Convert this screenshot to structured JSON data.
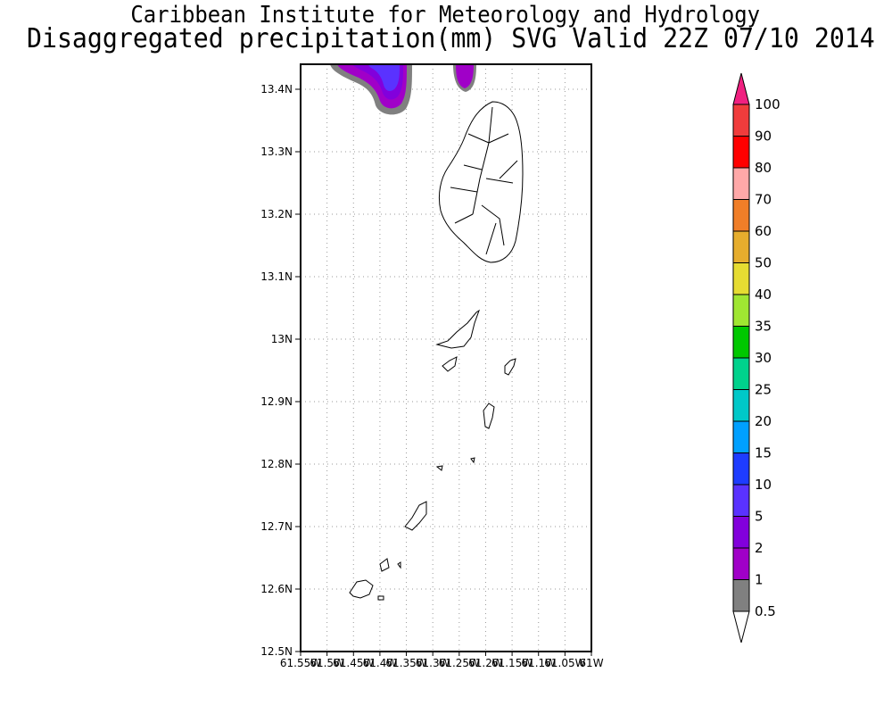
{
  "header": {
    "title_line1": "Caribbean Institute for Meteorology and Hydrology",
    "title_line2": "Disaggregated precipitation(mm) SVG Valid 22Z 07/10 2014"
  },
  "map": {
    "region": "St. Vincent and the Grenadines",
    "lat_labels": [
      "13.4N",
      "13.3N",
      "13.2N",
      "13.1N",
      "13N",
      "12.9N",
      "12.8N",
      "12.7N",
      "12.6N",
      "12.5N"
    ],
    "lon_labels": [
      "61.55W",
      "61.5W",
      "61.45W",
      "61.4W",
      "61.35W",
      "61.3W",
      "61.25W",
      "61.2W",
      "61.15W",
      "61.1W",
      "61.05W",
      "61W"
    ]
  },
  "colorbar": {
    "labels": [
      "100",
      "90",
      "80",
      "70",
      "60",
      "50",
      "40",
      "35",
      "30",
      "25",
      "20",
      "15",
      "10",
      "5",
      "2",
      "1",
      "0.5"
    ],
    "colors": [
      "#f02080",
      "#f03c3c",
      "#ff0000",
      "#ffa8a8",
      "#f07e28",
      "#e6ad2d",
      "#e6dc32",
      "#a0e632",
      "#00c800",
      "#00d28c",
      "#00c8c8",
      "#00a0ff",
      "#1e3cff",
      "#5a32ff",
      "#8200dc",
      "#a000c8",
      "#808080",
      "#ffffff"
    ]
  }
}
